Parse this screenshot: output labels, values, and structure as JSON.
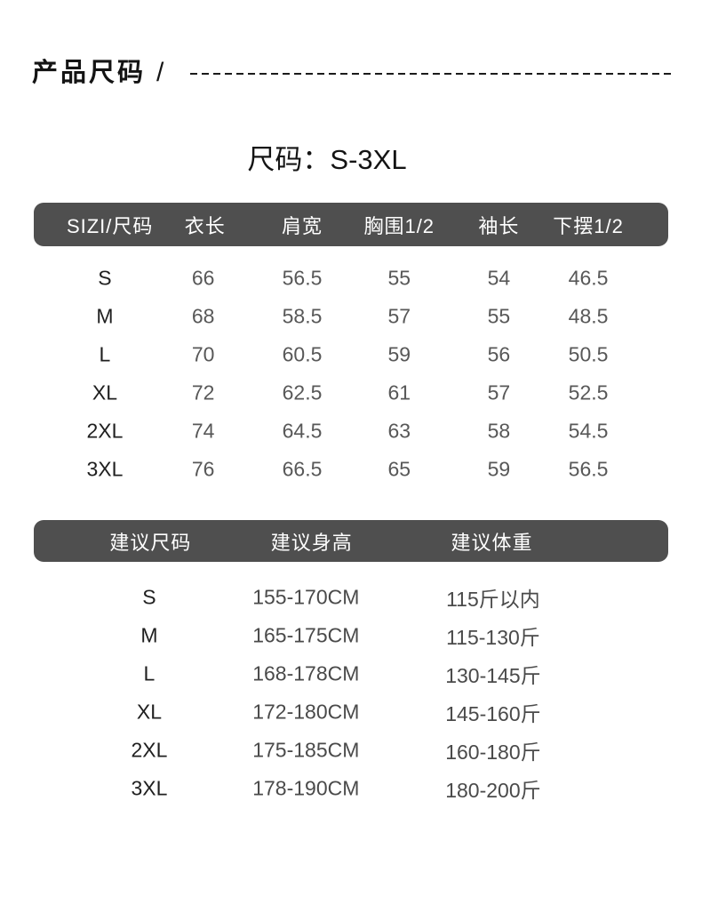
{
  "header": {
    "title": "产品尺码",
    "slash": "/"
  },
  "subtitle": "尺码：S-3XL",
  "size_table": {
    "headers": [
      "SIZI/尺码",
      "衣长",
      "肩宽",
      "胸围1/2",
      "袖长",
      "下摆1/2"
    ],
    "rows": [
      [
        "S",
        "66",
        "56.5",
        "55",
        "54",
        "46.5"
      ],
      [
        "M",
        "68",
        "58.5",
        "57",
        "55",
        "48.5"
      ],
      [
        "L",
        "70",
        "60.5",
        "59",
        "56",
        "50.5"
      ],
      [
        "XL",
        "72",
        "62.5",
        "61",
        "57",
        "52.5"
      ],
      [
        "2XL",
        "74",
        "64.5",
        "63",
        "58",
        "54.5"
      ],
      [
        "3XL",
        "76",
        "66.5",
        "65",
        "59",
        "56.5"
      ]
    ]
  },
  "suggestion_table": {
    "headers": [
      "建议尺码",
      "建议身高",
      "建议体重"
    ],
    "rows": [
      [
        "S",
        "155-170CM",
        "115斤以内"
      ],
      [
        "M",
        "165-175CM",
        "115-130斤"
      ],
      [
        "L",
        "168-178CM",
        "130-145斤"
      ],
      [
        "XL",
        "172-180CM",
        "145-160斤"
      ],
      [
        "2XL",
        "175-185CM",
        "160-180斤"
      ],
      [
        "3XL",
        "178-190CM",
        "180-200斤"
      ]
    ]
  },
  "colors": {
    "background": "#ffffff",
    "header_bar": "#4f4f4f",
    "header_bar_text": "#ffffff",
    "title_text": "#141414",
    "size_label_text": "#1f1f1f",
    "value_text": "#585858"
  }
}
